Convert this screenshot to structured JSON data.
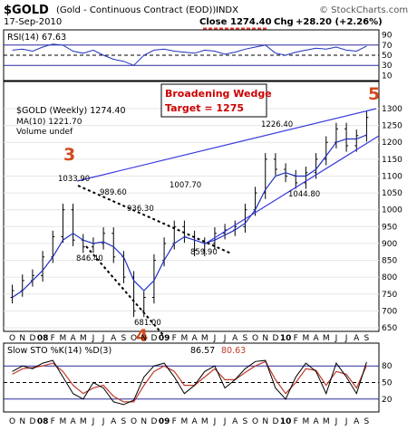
{
  "header": {
    "symbol": "$GOLD",
    "name": "(Gold - Continuous Contract (EOD))",
    "exchange": "INDX",
    "watermark": "© StockCharts.com",
    "date": "17-Sep-2010",
    "close_label": "Close",
    "close_value": "1274.40",
    "chg_label": "Chg",
    "chg_value": "+28.20 (+2.26%)"
  },
  "rsi": {
    "label": "RSI(14) 67.63",
    "ticks": [
      "90",
      "70",
      "50",
      "30",
      "10"
    ]
  },
  "main": {
    "legend_title": "$GOLD (Weekly) 1274.40",
    "legend_ma": "MA(10) 1221.70",
    "legend_volume": "Volume undef",
    "annotation_line1": "Broadening Wedge",
    "annotation_line2": "Target = 1275",
    "wave_3": "3",
    "wave_4": "4",
    "wave_5": "5",
    "price_labels": [
      "1033.90",
      "989.60",
      "936.30",
      "846.40",
      "681.00",
      "1007.70",
      "859.90",
      "1226.40",
      "1044.80"
    ],
    "y_ticks": [
      "1300",
      "1250",
      "1200",
      "1150",
      "1100",
      "1050",
      "1000",
      "950",
      "900",
      "850",
      "800",
      "750",
      "700",
      "650"
    ]
  },
  "stoch": {
    "label_prefix": "Slow STO %K(14) %D(3)",
    "k_value": "86.57",
    "d_value": "80.63",
    "ticks": [
      "80",
      "50",
      "20"
    ]
  },
  "x_axis": {
    "labels": [
      "O",
      "N",
      "D",
      "08",
      "F",
      "M",
      "A",
      "M",
      "J",
      "J",
      "A",
      "S",
      "O",
      "N",
      "D",
      "09",
      "F",
      "M",
      "A",
      "M",
      "J",
      "J",
      "A",
      "S",
      "O",
      "N",
      "D",
      "10",
      "F",
      "M",
      "A",
      "M",
      "J",
      "J",
      "A",
      "S"
    ]
  },
  "colors": {
    "price": "#000000",
    "ma": "#1f2fbf",
    "trendline": "#3a3adf",
    "annotation_red": "#cc0000",
    "wave_orange": "#d2491e",
    "stoch_k": "#000000",
    "stoch_d": "#c0392b"
  },
  "chart_data": [
    {
      "type": "line",
      "title": "RSI(14) 67.63",
      "ylim": [
        0,
        100
      ],
      "levels": [
        70,
        50,
        30
      ],
      "x": [
        "O",
        "N",
        "D",
        "08",
        "F",
        "M",
        "A",
        "M",
        "J",
        "J",
        "A",
        "S",
        "O",
        "N",
        "D",
        "09",
        "F",
        "M",
        "A",
        "M",
        "J",
        "J",
        "A",
        "S",
        "O",
        "N",
        "D",
        "10",
        "F",
        "M",
        "A",
        "M",
        "J",
        "J",
        "A",
        "S"
      ],
      "series": [
        {
          "name": "RSI(14)",
          "values": [
            60,
            62,
            58,
            66,
            72,
            70,
            58,
            54,
            60,
            50,
            42,
            38,
            30,
            50,
            60,
            62,
            58,
            56,
            54,
            60,
            58,
            52,
            56,
            62,
            66,
            70,
            54,
            50,
            56,
            60,
            64,
            62,
            66,
            60,
            58,
            68
          ]
        }
      ]
    },
    {
      "type": "line",
      "title": "$GOLD (Weekly) 1274.40",
      "ylim": [
        640,
        1320
      ],
      "x": [
        "O",
        "N",
        "D",
        "08",
        "F",
        "M",
        "A",
        "M",
        "J",
        "J",
        "A",
        "S",
        "O",
        "N",
        "D",
        "09",
        "F",
        "M",
        "A",
        "M",
        "J",
        "J",
        "A",
        "S",
        "O",
        "N",
        "D",
        "10",
        "F",
        "M",
        "A",
        "M",
        "J",
        "J",
        "A",
        "S"
      ],
      "series": [
        {
          "name": "$GOLD (Weekly)",
          "values": [
            760,
            790,
            805,
            860,
            920,
            1000,
            910,
            890,
            900,
            930,
            860,
            800,
            700,
            740,
            850,
            900,
            950,
            920,
            880,
            900,
            930,
            940,
            950,
            1000,
            1050,
            1150,
            1120,
            1100,
            1080,
            1110,
            1150,
            1200,
            1240,
            1190,
            1220,
            1274
          ]
        },
        {
          "name": "MA(10)",
          "values": [
            740,
            760,
            790,
            820,
            860,
            910,
            930,
            910,
            900,
            905,
            890,
            860,
            790,
            760,
            790,
            850,
            900,
            920,
            910,
            900,
            910,
            925,
            940,
            960,
            1000,
            1060,
            1100,
            1110,
            1100,
            1100,
            1120,
            1160,
            1200,
            1210,
            1210,
            1222
          ]
        }
      ],
      "annotations": [
        "1033.90",
        "989.60",
        "936.30",
        "846.40",
        "681.00",
        "1007.70",
        "859.90",
        "1226.40",
        "1044.80"
      ]
    },
    {
      "type": "line",
      "title": "Slow STO %K(14) %D(3) 86.57, 80.63",
      "ylim": [
        0,
        100
      ],
      "levels": [
        80,
        50,
        20
      ],
      "x": [
        "O",
        "N",
        "D",
        "08",
        "F",
        "M",
        "A",
        "M",
        "J",
        "J",
        "A",
        "S",
        "O",
        "N",
        "D",
        "09",
        "F",
        "M",
        "A",
        "M",
        "J",
        "J",
        "A",
        "S",
        "O",
        "N",
        "D",
        "10",
        "F",
        "M",
        "A",
        "M",
        "J",
        "J",
        "A",
        "S"
      ],
      "series": [
        {
          "name": "%K(14)",
          "values": [
            70,
            80,
            75,
            85,
            90,
            60,
            30,
            20,
            50,
            40,
            15,
            10,
            18,
            60,
            80,
            85,
            60,
            30,
            45,
            70,
            80,
            40,
            55,
            75,
            88,
            90,
            40,
            20,
            60,
            85,
            70,
            30,
            85,
            60,
            30,
            87
          ]
        },
        {
          "name": "%D(3)",
          "values": [
            65,
            75,
            77,
            80,
            85,
            70,
            45,
            30,
            40,
            45,
            25,
            15,
            15,
            45,
            70,
            80,
            70,
            45,
            45,
            60,
            75,
            55,
            55,
            68,
            80,
            88,
            55,
            30,
            50,
            75,
            72,
            45,
            70,
            65,
            40,
            81
          ]
        }
      ]
    }
  ]
}
